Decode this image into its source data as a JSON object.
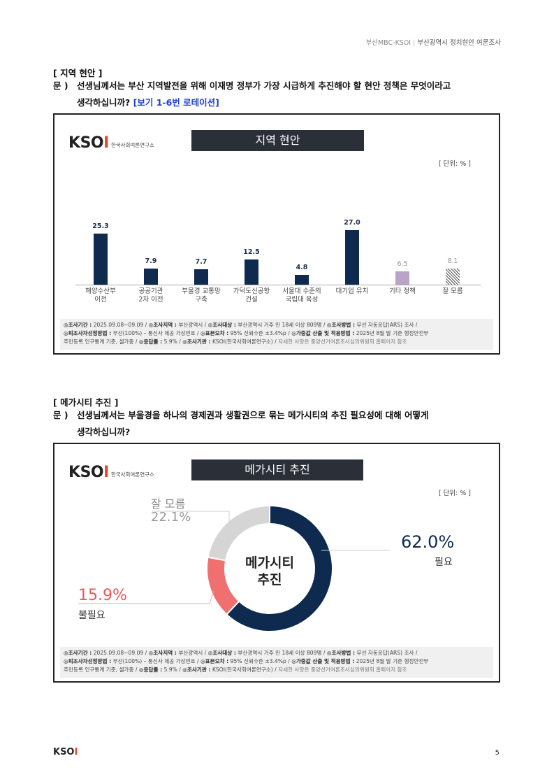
{
  "header": {
    "source": "부산MBC-KSOI",
    "title": "부산광역시 정치현안 여론조사"
  },
  "section1": {
    "title": "[ 지역 현안 ]",
    "q_label": "문 )",
    "q_line1": "선생님께서는 부산 지역발전을 위해 이재명 정부가 가장 시급하게 추진해야 할 현안 정책은 무엇이라고",
    "q_line2": "생각하십니까?",
    "q_note": "[보기 1-6번 로테이션]"
  },
  "logo": {
    "word": "KSOI",
    "sub": "한국사회여론연구소"
  },
  "chart1": {
    "title": "지역 현안",
    "unit": "[ 단위: % ]"
  },
  "chart_data": [
    {
      "type": "bar",
      "title": "지역 현안",
      "ylabel": "",
      "xlabel": "",
      "ylim": [
        0,
        30
      ],
      "categories": [
        "해양수산부\n이전",
        "공공기관\n2차 이전",
        "부울경 교통망\n구축",
        "가덕도신공항\n건설",
        "서울대 수준의\n국립대 육성",
        "대기업 유치",
        "기타 정책",
        "잘 모름"
      ],
      "values": [
        25.3,
        7.9,
        7.7,
        12.5,
        4.8,
        27.0,
        6.5,
        8.1
      ],
      "value_labels": [
        "25.3",
        "7.9",
        "7.7",
        "12.5",
        "4.8",
        "27.0",
        "6.5",
        "8.1"
      ],
      "colors": [
        "#0e2a4f",
        "#0e2a4f",
        "#0e2a4f",
        "#0e2a4f",
        "#0e2a4f",
        "#0e2a4f",
        "#b9a3c9",
        "hatch"
      ]
    },
    {
      "type": "pie",
      "title": "메가시티 추진",
      "center_label": [
        "메가시티",
        "추진"
      ],
      "categories": [
        "필요",
        "불필요",
        "잘 모름"
      ],
      "values": [
        62.0,
        15.9,
        22.1
      ],
      "value_labels": [
        "62.0%",
        "15.9%",
        "22.1%"
      ],
      "colors": [
        "#0e2a4f",
        "#f07070",
        "#d5d5d5"
      ]
    }
  ],
  "footer": {
    "line1_a_label": "◎조사기간 :",
    "line1_a": "2025.09.08~09.09 /",
    "line1_b_label": "◎조사지역 :",
    "line1_b": "부산광역시 /",
    "line1_c_label": "◎조사대상 :",
    "line1_c": "부산광역시 거주 만 18세 이상 809명 /",
    "line1_d_label": "◎조사방법 :",
    "line1_d": "무선 자동응답(ARS) 조사 /",
    "line2_a_label": "◎피조사자선정방법 :",
    "line2_a": "무선(100%) – 통신사 제공 가상번호 /",
    "line2_b_label": "◎표본오차 :",
    "line2_b": "95% 신뢰수준 ±3.4%p /",
    "line2_c_label": "◎가중값 산출 및 적용방법 :",
    "line2_c": "2025년 8월 말 기준 행정안전부",
    "line3_a": "주민등록 인구통계 기준, 셀가중 /",
    "line3_b_label": "◎응답률 :",
    "line3_b": "5.9% /",
    "line3_c_label": "◎조사기관 :",
    "line3_c": "KSOI(한국사회여론연구소) /",
    "line3_d": "자세한 사항은 중앙선거여론조사심의위원회 홈페이지 참조"
  },
  "section2": {
    "title": "[ 메가시티 추진 ]",
    "q_label": "문 )",
    "q_line1": "선생님께서는 부울경을 하나의 경제권과 생활권으로 묶는 메가시티의 추진 필요성에 대해 어떻게",
    "q_line2": "생각하십니까?"
  },
  "chart2": {
    "title": "메가시티 추진",
    "unit": "[ 단위: % ]",
    "center_1": "메가시티",
    "center_2": "추진",
    "need_pct": "62.0%",
    "need_lbl": "필요",
    "noneed_pct": "15.9%",
    "noneed_lbl": "불필요",
    "dk_pct": "22.1%",
    "dk_lbl": "잘 모름"
  },
  "page": {
    "logo": "KSOI",
    "number": "5"
  }
}
